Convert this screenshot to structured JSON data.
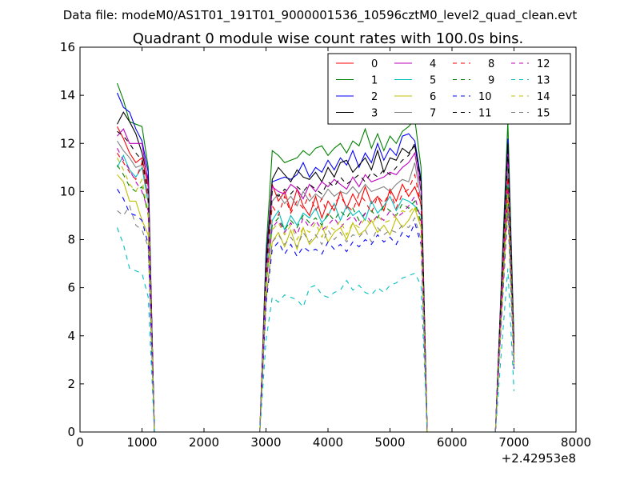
{
  "chart_data": {
    "type": "line",
    "suptitle": "Data file: modeM0/AS1T01_191T01_9000001536_10596cztM0_level2_quad_clean.evt",
    "title": "Quadrant 0 module wise count rates with 100.0s bins.",
    "xlabel": "",
    "ylabel": "",
    "x_offset_label": "+2.42953e8",
    "xlim": [
      0,
      8000
    ],
    "ylim": [
      0,
      16
    ],
    "x_ticks": [
      0,
      1000,
      2000,
      3000,
      4000,
      5000,
      6000,
      7000,
      8000
    ],
    "y_ticks": [
      0,
      2,
      4,
      6,
      8,
      10,
      12,
      14,
      16
    ],
    "legend_position": "top-right",
    "legend_columns": 4,
    "x": [
      600,
      700,
      800,
      900,
      1000,
      1100,
      1200,
      2900,
      3000,
      3100,
      3200,
      3300,
      3400,
      3500,
      3600,
      3700,
      3800,
      3900,
      4000,
      4100,
      4200,
      4300,
      4400,
      4500,
      4600,
      4700,
      4800,
      4900,
      5000,
      5100,
      5200,
      5300,
      5400,
      5500,
      5600,
      6700,
      6800,
      6900,
      7000
    ],
    "series": [
      {
        "name": "0",
        "color": "#ff0000",
        "dash": "solid",
        "values": [
          12.7,
          12.2,
          11.6,
          11.2,
          11.4,
          10.2,
          0,
          0,
          6.5,
          10.3,
          9.6,
          10.0,
          9.2,
          10.1,
          9.4,
          9.0,
          9.8,
          8.9,
          9.6,
          9.2,
          10.0,
          9.3,
          9.9,
          9.4,
          10.2,
          9.5,
          9.8,
          9.2,
          10.1,
          9.6,
          10.3,
          9.8,
          10.2,
          9.5,
          0,
          0,
          5.5,
          10.8,
          3.2
        ]
      },
      {
        "name": "1",
        "color": "#008000",
        "dash": "solid",
        "values": [
          14.5,
          13.8,
          12.9,
          12.8,
          12.7,
          11.0,
          0,
          0,
          7.5,
          11.7,
          11.5,
          11.2,
          11.3,
          11.4,
          11.7,
          11.5,
          11.8,
          11.9,
          11.5,
          11.8,
          12.0,
          11.6,
          12.1,
          11.9,
          12.6,
          11.8,
          12.4,
          11.7,
          12.3,
          12.0,
          12.5,
          12.7,
          13.0,
          11.0,
          0,
          0,
          6.5,
          12.9,
          3.8
        ]
      },
      {
        "name": "2",
        "color": "#0000ff",
        "dash": "solid",
        "values": [
          14.1,
          13.5,
          13.3,
          12.6,
          12.1,
          10.8,
          0,
          0,
          7.2,
          10.4,
          10.5,
          10.6,
          10.5,
          10.7,
          11.2,
          10.6,
          11.0,
          10.8,
          11.3,
          10.9,
          11.4,
          11.1,
          11.7,
          11.0,
          11.6,
          11.2,
          12.0,
          11.3,
          11.8,
          11.5,
          12.3,
          12.4,
          12.1,
          10.5,
          0,
          0,
          6.3,
          12.2,
          3.6
        ]
      },
      {
        "name": "3",
        "color": "#000000",
        "dash": "solid",
        "values": [
          12.8,
          13.3,
          12.9,
          12.4,
          11.6,
          10.5,
          0,
          0,
          7.0,
          10.5,
          11.0,
          10.7,
          10.4,
          10.9,
          10.6,
          10.5,
          10.8,
          10.4,
          11.0,
          10.6,
          11.2,
          11.3,
          10.8,
          11.1,
          11.4,
          10.9,
          11.7,
          10.8,
          11.4,
          11.3,
          11.8,
          11.6,
          11.9,
          10.4,
          0,
          0,
          6.2,
          12.0,
          3.5
        ]
      },
      {
        "name": "4",
        "color": "#bf00bf",
        "dash": "solid",
        "values": [
          12.3,
          12.6,
          12.0,
          12.0,
          12.0,
          10.3,
          0,
          0,
          6.8,
          10.2,
          10.0,
          9.9,
          10.3,
          10.1,
          9.7,
          10.3,
          10.0,
          10.4,
          10.2,
          10.5,
          10.3,
          10.1,
          10.6,
          10.2,
          10.7,
          10.4,
          10.5,
          10.6,
          10.8,
          10.7,
          11.0,
          11.2,
          11.6,
          10.0,
          0,
          0,
          6.0,
          11.6,
          3.4
        ]
      },
      {
        "name": "5",
        "color": "#00bfbf",
        "dash": "solid",
        "values": [
          11.0,
          11.5,
          10.9,
          10.6,
          11.0,
          9.5,
          0,
          0,
          6.2,
          8.8,
          9.2,
          8.4,
          9.0,
          8.6,
          9.1,
          8.9,
          9.3,
          8.7,
          9.0,
          9.5,
          8.8,
          9.4,
          9.0,
          9.2,
          8.8,
          9.6,
          9.1,
          9.4,
          9.8,
          9.2,
          9.7,
          9.6,
          9.4,
          9.0,
          0,
          0,
          5.4,
          10.4,
          3.0
        ]
      },
      {
        "name": "6",
        "color": "#bfbf00",
        "dash": "solid",
        "values": [
          10.7,
          10.4,
          9.6,
          9.6,
          8.8,
          8.2,
          0,
          0,
          5.5,
          7.9,
          8.3,
          7.7,
          8.4,
          7.6,
          8.5,
          7.8,
          8.1,
          8.6,
          7.9,
          8.3,
          8.5,
          8.0,
          8.7,
          8.2,
          8.4,
          8.8,
          8.3,
          8.6,
          8.2,
          8.9,
          8.5,
          8.8,
          9.3,
          8.5,
          0,
          0,
          5.0,
          9.6,
          2.8
        ]
      },
      {
        "name": "7",
        "color": "#808080",
        "dash": "solid",
        "values": [
          12.1,
          11.7,
          11.4,
          11.0,
          11.1,
          9.8,
          0,
          0,
          6.6,
          9.6,
          9.9,
          9.5,
          9.8,
          9.4,
          10.0,
          9.6,
          9.9,
          9.7,
          10.1,
          9.8,
          10.0,
          9.9,
          10.2,
          9.9,
          10.3,
          10.0,
          10.1,
          10.2,
          10.0,
          10.3,
          10.5,
          10.4,
          11.2,
          9.6,
          0,
          0,
          5.8,
          11.0,
          3.3
        ]
      },
      {
        "name": "8",
        "color": "#ff0000",
        "dash": "dashed",
        "values": [
          11.6,
          11.2,
          10.8,
          10.5,
          11.2,
          9.6,
          0,
          0,
          6.4,
          9.4,
          9.0,
          9.8,
          9.1,
          9.6,
          9.3,
          9.9,
          9.2,
          9.7,
          9.0,
          9.5,
          9.8,
          9.4,
          9.2,
          9.9,
          9.6,
          9.1,
          9.8,
          9.5,
          10.0,
          9.3,
          9.9,
          10.1,
          10.7,
          9.4,
          0,
          0,
          5.6,
          10.6,
          3.2
        ]
      },
      {
        "name": "9",
        "color": "#008000",
        "dash": "dashed",
        "values": [
          11.1,
          10.7,
          10.2,
          10.0,
          10.2,
          9.0,
          0,
          0,
          6.0,
          8.6,
          8.9,
          8.4,
          8.8,
          8.5,
          9.0,
          8.7,
          8.9,
          8.6,
          9.1,
          8.8,
          9.2,
          8.9,
          9.3,
          8.8,
          9.1,
          9.2,
          8.9,
          9.4,
          9.2,
          9.0,
          9.5,
          9.3,
          9.6,
          8.7,
          0,
          0,
          5.2,
          10.2,
          3.0
        ]
      },
      {
        "name": "10",
        "color": "#0000ff",
        "dash": "dashed",
        "values": [
          10.1,
          9.7,
          9.1,
          9.0,
          8.8,
          7.8,
          0,
          0,
          5.3,
          7.6,
          7.9,
          7.4,
          7.8,
          7.3,
          7.7,
          7.5,
          7.6,
          7.4,
          7.9,
          7.6,
          7.8,
          7.5,
          7.9,
          7.7,
          8.0,
          7.8,
          8.2,
          7.9,
          8.1,
          7.8,
          8.3,
          8.1,
          8.7,
          7.8,
          0,
          0,
          4.8,
          9.2,
          2.6
        ]
      },
      {
        "name": "11",
        "color": "#000000",
        "dash": "dashed",
        "values": [
          12.5,
          12.3,
          12.0,
          11.6,
          11.3,
          10.0,
          0,
          0,
          6.7,
          10.0,
          9.8,
          10.1,
          9.9,
          10.2,
          10.0,
          10.3,
          10.1,
          9.9,
          10.4,
          10.2,
          10.6,
          10.3,
          10.5,
          10.7,
          10.4,
          10.8,
          10.6,
          10.9,
          10.7,
          11.0,
          11.3,
          11.5,
          12.0,
          10.2,
          0,
          0,
          6.0,
          11.7,
          3.4
        ]
      },
      {
        "name": "12",
        "color": "#bf00bf",
        "dash": "dashed",
        "values": [
          11.8,
          11.3,
          10.9,
          10.4,
          10.0,
          9.2,
          0,
          0,
          6.1,
          8.5,
          8.8,
          8.3,
          8.7,
          8.2,
          8.9,
          8.5,
          8.8,
          8.4,
          8.6,
          8.9,
          8.5,
          8.8,
          9.0,
          8.6,
          9.1,
          8.7,
          9.0,
          8.8,
          9.2,
          8.9,
          9.1,
          9.4,
          9.8,
          8.8,
          0,
          0,
          5.3,
          10.0,
          2.9
        ]
      },
      {
        "name": "13",
        "color": "#00bfbf",
        "dash": "dashed",
        "values": [
          8.5,
          7.8,
          6.8,
          6.7,
          6.6,
          5.6,
          0,
          0,
          3.8,
          5.6,
          5.4,
          5.7,
          5.6,
          5.5,
          5.2,
          6.0,
          6.1,
          5.7,
          5.6,
          5.8,
          5.9,
          6.3,
          5.9,
          6.1,
          5.8,
          5.7,
          6.0,
          5.8,
          6.1,
          6.2,
          6.4,
          6.5,
          6.6,
          6.1,
          0,
          0,
          3.5,
          6.8,
          1.7
        ]
      },
      {
        "name": "14",
        "color": "#bfbf00",
        "dash": "dashed",
        "values": [
          11.4,
          10.9,
          10.3,
          10.0,
          10.5,
          9.1,
          0,
          0,
          6.1,
          8.4,
          8.7,
          8.2,
          8.6,
          8.0,
          8.5,
          8.3,
          8.7,
          8.1,
          8.6,
          8.4,
          8.8,
          8.2,
          8.7,
          8.5,
          8.9,
          8.6,
          9.0,
          8.7,
          8.8,
          9.0,
          9.2,
          9.1,
          9.4,
          8.6,
          0,
          0,
          5.1,
          9.9,
          2.9
        ]
      },
      {
        "name": "15",
        "color": "#808080",
        "dash": "dashed",
        "values": [
          9.2,
          9.0,
          9.4,
          8.6,
          8.4,
          7.7,
          0,
          0,
          5.4,
          7.9,
          8.2,
          7.8,
          8.1,
          7.7,
          8.3,
          7.9,
          8.2,
          7.8,
          8.4,
          8.0,
          8.3,
          7.9,
          8.2,
          8.1,
          8.4,
          7.9,
          8.5,
          8.2,
          8.4,
          8.3,
          8.6,
          8.5,
          8.9,
          8.0,
          0,
          0,
          4.9,
          9.4,
          2.7
        ]
      }
    ]
  }
}
